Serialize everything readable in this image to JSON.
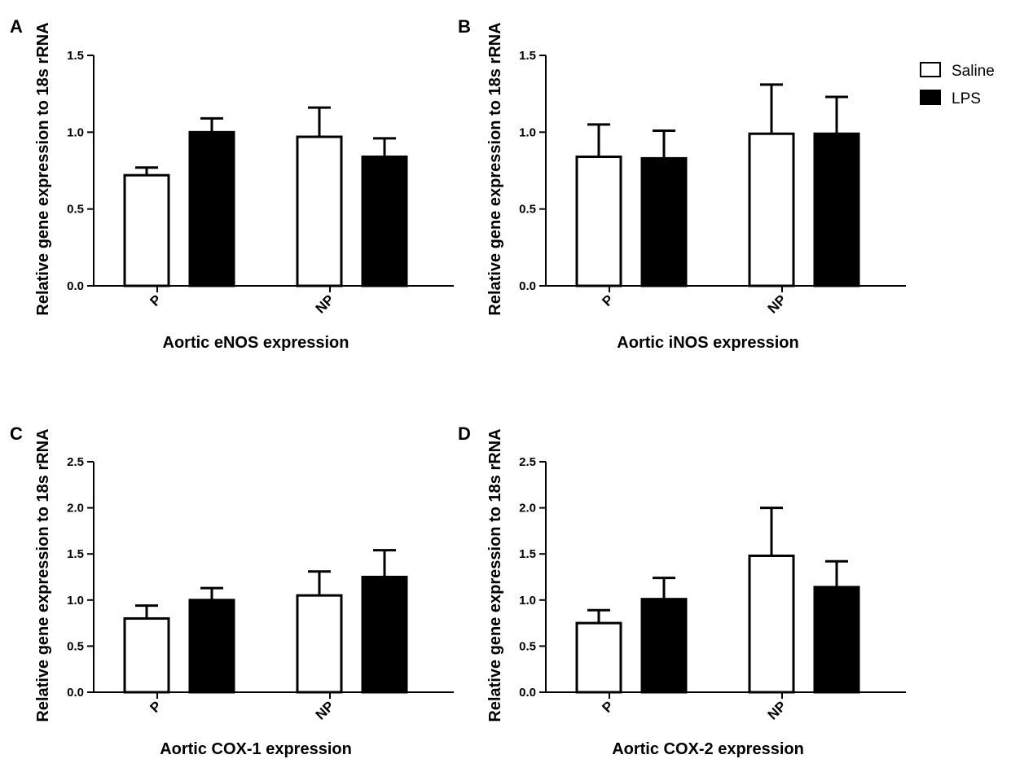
{
  "legend": {
    "items": [
      {
        "name": "Saline",
        "fill": "#ffffff"
      },
      {
        "name": "LPS",
        "fill": "#000000"
      }
    ],
    "position": "top-right"
  },
  "chart_data": [
    {
      "type": "bar",
      "panel": "A",
      "title": "",
      "xlabel": "Aortic eNOS expression",
      "ylabel": "Relative gene expression to 18s rRNA",
      "categories": [
        "P",
        "NP"
      ],
      "ylim": [
        0,
        1.5
      ],
      "yticks": [
        "0.0",
        "0.5",
        "1.0",
        "1.5"
      ],
      "series": [
        {
          "name": "Saline",
          "values": [
            0.72,
            0.97
          ],
          "errors": [
            0.05,
            0.19
          ]
        },
        {
          "name": "LPS",
          "values": [
            1.0,
            0.84
          ],
          "errors": [
            0.09,
            0.12
          ]
        }
      ]
    },
    {
      "type": "bar",
      "panel": "B",
      "title": "",
      "xlabel": "Aortic iNOS expression",
      "ylabel": "Relative gene expression to 18s rRNA",
      "categories": [
        "P",
        "NP"
      ],
      "ylim": [
        0,
        1.5
      ],
      "yticks": [
        "0.0",
        "0.5",
        "1.0",
        "1.5"
      ],
      "series": [
        {
          "name": "Saline",
          "values": [
            0.84,
            0.99
          ],
          "errors": [
            0.21,
            0.32
          ]
        },
        {
          "name": "LPS",
          "values": [
            0.83,
            0.99
          ],
          "errors": [
            0.18,
            0.24
          ]
        }
      ]
    },
    {
      "type": "bar",
      "panel": "C",
      "title": "",
      "xlabel": "Aortic COX-1 expression",
      "ylabel": "Relative gene expression to 18s rRNA",
      "categories": [
        "P",
        "NP"
      ],
      "ylim": [
        0,
        2.5
      ],
      "yticks": [
        "0.0",
        "0.5",
        "1.0",
        "1.5",
        "2.0",
        "2.5"
      ],
      "series": [
        {
          "name": "Saline",
          "values": [
            0.8,
            1.05
          ],
          "errors": [
            0.14,
            0.26
          ]
        },
        {
          "name": "LPS",
          "values": [
            1.0,
            1.25
          ],
          "errors": [
            0.13,
            0.29
          ]
        }
      ]
    },
    {
      "type": "bar",
      "panel": "D",
      "title": "",
      "xlabel": "Aortic COX-2 expression",
      "ylabel": "Relative gene expression to 18s rRNA",
      "categories": [
        "P",
        "NP"
      ],
      "ylim": [
        0,
        2.5
      ],
      "yticks": [
        "0.0",
        "0.5",
        "1.0",
        "1.5",
        "2.0",
        "2.5"
      ],
      "series": [
        {
          "name": "Saline",
          "values": [
            0.75,
            1.48
          ],
          "errors": [
            0.14,
            0.52
          ]
        },
        {
          "name": "LPS",
          "values": [
            1.01,
            1.14
          ],
          "errors": [
            0.23,
            0.28
          ]
        }
      ]
    }
  ]
}
